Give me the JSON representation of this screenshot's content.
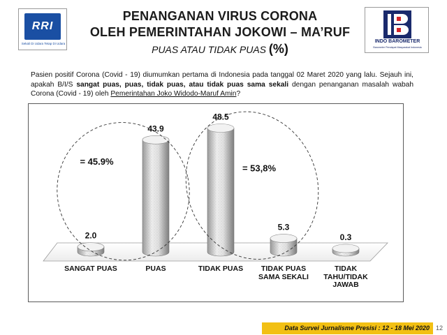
{
  "header": {
    "title_line1": "PENANGANAN VIRUS CORONA",
    "title_line2": "OLEH PEMERINTAHAN JOKOWI – MA’RUF",
    "subtitle": "PUAS ATAU TIDAK PUAS",
    "subtitle_unit": "(%)",
    "logo_left": {
      "text": "RRI",
      "tagline": "Sekali Di Udara Tetap Di Udara",
      "color": "#1a4fa3"
    },
    "logo_right": {
      "name": "INDO BAROMETER",
      "tagline": "Barometer Pendapat Masyarakat Indonesia",
      "color": "#1a2a6c"
    }
  },
  "question": {
    "part1": "Pasien positif Corona (Covid - 19) diumumkan pertama di Indonesia pada tanggal 02 Maret 2020 yang lalu. Sejauh ini, apakah B/I/S ",
    "bold": "sangat puas, puas, tidak puas, atau tidak puas sama sekali",
    "part2": " dengan penanganan masalah wabah Corona (Covid - 19) oleh ",
    "underlined": "Pemerintahan Joko Widodo-Maruf Amin",
    "part3": "?"
  },
  "chart_data": {
    "type": "bar",
    "categories": [
      "SANGAT PUAS",
      "PUAS",
      "TIDAK PUAS",
      "TIDAK PUAS SAMA SEKALI",
      "TIDAK TAHU/TIDAK JAWAB"
    ],
    "category_lines": [
      [
        "SANGAT PUAS"
      ],
      [
        "PUAS"
      ],
      [
        "TIDAK PUAS"
      ],
      [
        "TIDAK PUAS",
        "SAMA SEKALI"
      ],
      [
        "TIDAK",
        "TAHU/TIDAK",
        "JAWAB"
      ]
    ],
    "values": [
      2.0,
      43.9,
      48.5,
      5.3,
      0.3
    ],
    "value_labels": [
      "2.0",
      "43.9",
      "48.5",
      "5.3",
      "0.3"
    ],
    "ylim": [
      0,
      50
    ],
    "grid": false,
    "legend": "none",
    "annotations": [
      {
        "text": "= 45.9%",
        "groups": [
          0,
          1
        ]
      },
      {
        "text": "= 53,8%",
        "groups": [
          2,
          3
        ]
      }
    ],
    "bar_color": "#d9d9d9"
  },
  "footer": {
    "text": "Data Survei Jurnalisme Presisi : 12 - 18 Mei 2020",
    "page": "12",
    "bar_color": "#f2c014"
  }
}
